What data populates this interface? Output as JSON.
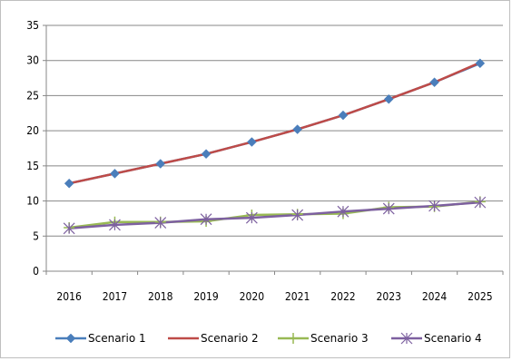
{
  "chart_data": {
    "type": "line",
    "title": "",
    "xlabel": "",
    "ylabel": "",
    "x": [
      "2016",
      "2017",
      "2018",
      "2019",
      "2020",
      "2021",
      "2022",
      "2023",
      "2024",
      "2025"
    ],
    "ylim": [
      0,
      35
    ],
    "yticks": [
      0,
      5,
      10,
      15,
      20,
      25,
      30,
      35
    ],
    "grid": "horizontal",
    "legend_position": "bottom",
    "series": [
      {
        "name": "Scenario 1",
        "color": "#4a7ebb",
        "marker": "diamond",
        "values": [
          12.5,
          13.9,
          15.3,
          16.7,
          18.4,
          20.2,
          22.2,
          24.5,
          26.9,
          29.6
        ]
      },
      {
        "name": "Scenario 2",
        "color": "#be4b48",
        "marker": "none",
        "values": [
          12.5,
          13.9,
          15.3,
          16.7,
          18.4,
          20.2,
          22.2,
          24.5,
          26.9,
          29.7
        ]
      },
      {
        "name": "Scenario 3",
        "color": "#98b954",
        "marker": "plus",
        "values": [
          6.2,
          7.0,
          7.0,
          7.1,
          8.0,
          8.1,
          8.2,
          9.1,
          9.2,
          9.9
        ]
      },
      {
        "name": "Scenario 4",
        "color": "#7d60a0",
        "marker": "x",
        "values": [
          6.1,
          6.6,
          6.9,
          7.4,
          7.6,
          8.0,
          8.5,
          8.9,
          9.3,
          9.8
        ]
      }
    ]
  }
}
